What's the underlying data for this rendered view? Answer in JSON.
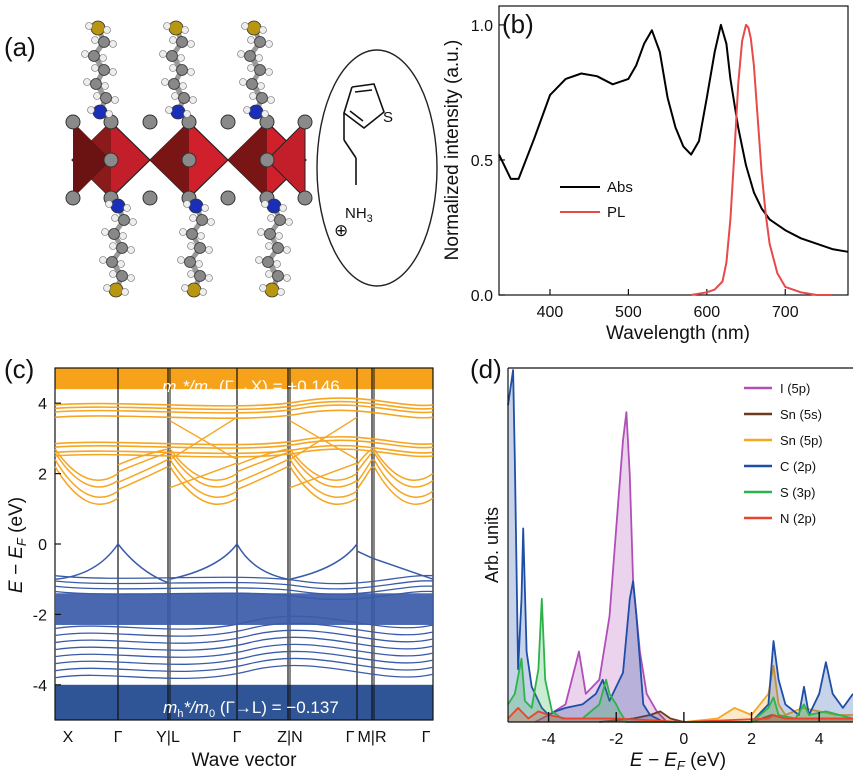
{
  "panels": {
    "a": {
      "label": "(a)",
      "molecule": {
        "atom_s": "S",
        "nh3_main": "NH",
        "nh3_sub": "3",
        "charge": "⊕"
      }
    },
    "b": {
      "label": "(b)",
      "xlabel": "Wavelength (nm)",
      "ylabel": "Normalized intensity (a.u.)",
      "xlim": [
        335,
        780
      ],
      "ylim": [
        0,
        1.07
      ],
      "xticks": [
        "400",
        "500",
        "600",
        "700"
      ],
      "yticks": [
        "0.0",
        "0.5",
        "1.0"
      ],
      "legend": [
        "Abs",
        "PL"
      ]
    },
    "c": {
      "label": "(c)",
      "xlabel": "Wave vector",
      "ylabel_main": "E − E",
      "ylabel_sub": "F",
      "ylabel_unit": " (eV)",
      "ylim": [
        -5,
        5
      ],
      "yticks": [
        "4",
        "2",
        "0",
        "-2",
        "-4"
      ],
      "kpoints": [
        "X",
        "Γ",
        "Y|L",
        "Γ",
        "Z|N",
        "Γ",
        "M|R",
        "Γ"
      ],
      "top_annotation": {
        "m": "m",
        "m_sub": "e",
        "rest": "*/m",
        "zero": "0",
        "path": " (Γ→X) = +0.146"
      },
      "bottom_annotation": {
        "m": "m",
        "m_sub": "h",
        "rest": "*/m",
        "zero": "0",
        "path": " (Γ→L) = −0.137"
      },
      "colors": {
        "conduction": "#F5A623",
        "valence": "#3A5BA9",
        "cb_band_bg": "#F7A21B",
        "vb_band_bg": "#2F5597"
      }
    },
    "d": {
      "label": "(d)",
      "ylabel": "Arb. units",
      "xlabel_main": "E − E",
      "xlabel_sub": "F",
      "xlabel_unit": " (eV)",
      "xlim": [
        -5.2,
        5
      ],
      "xticks": [
        "-4",
        "-2",
        "0",
        "2",
        "4"
      ],
      "legend": [
        {
          "name": "I (5p)",
          "color": "#B04FB8"
        },
        {
          "name": "Sn (5s)",
          "color": "#6B3A1F"
        },
        {
          "name": "Sn (5p)",
          "color": "#F5A623"
        },
        {
          "name": "C (2p)",
          "color": "#1F4EA8"
        },
        {
          "name": "S (3p)",
          "color": "#2DB34A"
        },
        {
          "name": "N (2p)",
          "color": "#E8452C"
        }
      ]
    }
  },
  "chart_data": [
    {
      "type": "line",
      "panel": "b",
      "xlabel": "Wavelength (nm)",
      "ylabel": "Normalized intensity (a.u.)",
      "series": [
        {
          "name": "Abs",
          "color": "#000000",
          "x": [
            335,
            350,
            360,
            380,
            400,
            420,
            440,
            460,
            480,
            500,
            510,
            520,
            530,
            540,
            550,
            560,
            570,
            580,
            590,
            600,
            610,
            618,
            625,
            630,
            640,
            650,
            660,
            670,
            680,
            700,
            720,
            740,
            760,
            780
          ],
          "y": [
            0.52,
            0.43,
            0.43,
            0.58,
            0.74,
            0.8,
            0.82,
            0.81,
            0.78,
            0.8,
            0.85,
            0.93,
            0.98,
            0.9,
            0.73,
            0.62,
            0.55,
            0.52,
            0.57,
            0.73,
            0.9,
            1.0,
            0.93,
            0.8,
            0.62,
            0.48,
            0.38,
            0.32,
            0.28,
            0.24,
            0.21,
            0.19,
            0.17,
            0.16
          ]
        },
        {
          "name": "PL",
          "color": "#E8494A",
          "x": [
            580,
            600,
            610,
            620,
            625,
            630,
            635,
            640,
            645,
            650,
            653,
            656,
            660,
            665,
            670,
            675,
            680,
            690,
            700,
            720,
            740,
            760
          ],
          "y": [
            0,
            0.01,
            0.02,
            0.05,
            0.12,
            0.28,
            0.52,
            0.78,
            0.94,
            1.0,
            0.99,
            0.95,
            0.85,
            0.65,
            0.45,
            0.3,
            0.19,
            0.08,
            0.03,
            0.01,
            0,
            0
          ]
        }
      ],
      "xlim": [
        335,
        780
      ],
      "ylim": [
        0,
        1.07
      ]
    },
    {
      "type": "line",
      "panel": "c",
      "xlabel": "Wave vector",
      "kpoints": [
        "X",
        "Γ",
        "Y|L",
        "Γ",
        "Z|N",
        "Γ",
        "M|R",
        "Γ"
      ],
      "conduction_band_minimum_eV": 1.3,
      "valence_band_maximum_eV": 0.0,
      "ylim": [
        -5,
        5
      ]
    },
    {
      "type": "area",
      "panel": "d",
      "xlim": [
        -5.2,
        5
      ],
      "series": [
        {
          "name": "I (5p)",
          "x": [
            -4.4,
            -4.0,
            -3.5,
            -3.1,
            -2.9,
            -2.5,
            -2.2,
            -2.0,
            -1.8,
            -1.7,
            -1.6,
            -1.5,
            -1.3,
            -1.1,
            -0.8,
            -0.5
          ],
          "y": [
            0.0,
            0.02,
            0.05,
            0.2,
            0.08,
            0.12,
            0.3,
            0.55,
            0.8,
            0.88,
            0.7,
            0.4,
            0.2,
            0.08,
            0.03,
            0.0
          ]
        },
        {
          "name": "Sn (5s)",
          "x": [
            -2.5,
            -1.5,
            -1.0,
            -0.7,
            -0.4,
            0,
            1,
            2,
            2.6,
            3,
            4,
            5
          ],
          "y": [
            0,
            0.01,
            0.02,
            0.03,
            0.01,
            0,
            0,
            0,
            0.02,
            0.01,
            0.01,
            0.01
          ]
        },
        {
          "name": "Sn (5p)",
          "x": [
            -1,
            0,
            1.0,
            1.5,
            2.0,
            2.5,
            2.65,
            2.8,
            3.0,
            3.5,
            4.0,
            4.5,
            5
          ],
          "y": [
            0,
            0,
            0.01,
            0.04,
            0.02,
            0.08,
            0.16,
            0.05,
            0.02,
            0.04,
            0.03,
            0.02,
            0.02
          ]
        },
        {
          "name": "C (2p)",
          "x": [
            -5.2,
            -5.05,
            -5.0,
            -4.9,
            -4.8,
            -4.75,
            -4.65,
            -4.5,
            -4.3,
            -4.2,
            -4.0,
            -3.8,
            -3.5,
            -3.0,
            -2.6,
            -2.4,
            -2.2,
            -2.0,
            -1.8,
            -1.6,
            -1.5,
            -1.4,
            -1.2,
            -1.0,
            -0.6,
            0,
            2.0,
            2.5,
            2.65,
            2.8,
            3.0,
            3.4,
            3.55,
            3.7,
            4.0,
            4.2,
            4.4,
            4.7,
            5.0
          ],
          "y": [
            0.9,
            1.0,
            0.75,
            0.15,
            0.35,
            0.55,
            0.2,
            0.1,
            0.06,
            0.04,
            0.02,
            0.03,
            0.04,
            0.05,
            0.08,
            0.12,
            0.06,
            0.1,
            0.14,
            0.35,
            0.4,
            0.3,
            0.05,
            0.02,
            0.0,
            0.0,
            0.0,
            0.05,
            0.23,
            0.12,
            0.05,
            0.02,
            0.1,
            0.02,
            0.08,
            0.17,
            0.08,
            0.04,
            0.08
          ]
        },
        {
          "name": "S (3p)",
          "x": [
            -5.2,
            -5.0,
            -4.8,
            -4.7,
            -4.5,
            -4.3,
            -4.2,
            -4.1,
            -3.9,
            -3.6,
            -3.0,
            -2.5,
            -2.3,
            -2.2,
            -2.0,
            -1.9,
            -1.7,
            0,
            2.0,
            2.5,
            2.65,
            2.8,
            3.3,
            3.55,
            3.7,
            4.2,
            5
          ],
          "y": [
            0.05,
            0.08,
            0.18,
            0.06,
            0.04,
            0.15,
            0.35,
            0.12,
            0.03,
            0.01,
            0.01,
            0.05,
            0.12,
            0.08,
            0.05,
            0.03,
            0.0,
            0.0,
            0.0,
            0.04,
            0.07,
            0.02,
            0.01,
            0.05,
            0.02,
            0.03,
            0.01
          ]
        },
        {
          "name": "N (2p)",
          "x": [
            -5.2,
            -4.9,
            -4.6,
            -4.3,
            -4.0,
            -3.5,
            -3.0,
            -2.0,
            0,
            2.5,
            2.65,
            3.0,
            3.55,
            4.2,
            5
          ],
          "y": [
            0.01,
            0.04,
            0.01,
            0.03,
            0.02,
            0.01,
            0.01,
            0.01,
            0,
            0.01,
            0.02,
            0.01,
            0.01,
            0.01,
            0.01
          ]
        }
      ]
    }
  ]
}
